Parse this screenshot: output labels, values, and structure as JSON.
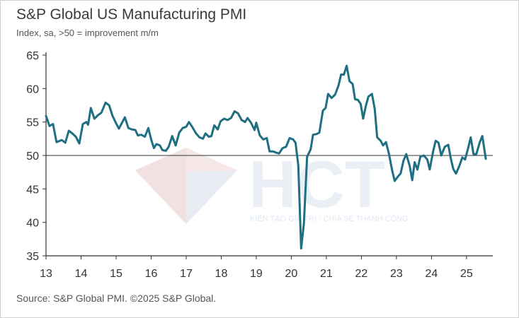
{
  "header": {
    "title": "S&P Global US Manufacturing PMI",
    "subtitle": "Index, sa, >50 = improvement m/m"
  },
  "footer": {
    "source": "Source: S&P Global PMI. ©2025 S&P Global."
  },
  "watermark": {
    "logo_text": "HCT",
    "tagline": "KIẾN TẠO GIÁ TRỊ - CHIA SẺ THÀNH CÔNG"
  },
  "colors": {
    "line": "#1f6f83",
    "axis": "#333333",
    "reference": "#333333"
  },
  "chart_data": {
    "type": "line",
    "title": "S&P Global US Manufacturing PMI",
    "subtitle": "Index, sa, >50 = improvement m/m",
    "xlabel": "",
    "ylabel": "",
    "ylim": [
      35,
      65
    ],
    "yticks": [
      35,
      40,
      45,
      50,
      55,
      60,
      65
    ],
    "xlim": [
      2013.0,
      2025.75
    ],
    "xtick_labels": [
      "13",
      "14",
      "15",
      "16",
      "17",
      "18",
      "19",
      "20",
      "21",
      "22",
      "23",
      "24",
      "25"
    ],
    "reference_line": 50,
    "grid": false,
    "legend": "none",
    "series": [
      {
        "values": [
          [
            2013.0,
            55.9
          ],
          [
            2013.1,
            54.4
          ],
          [
            2013.2,
            54.7
          ],
          [
            2013.3,
            52.0
          ],
          [
            2013.45,
            52.3
          ],
          [
            2013.55,
            51.9
          ],
          [
            2013.65,
            53.7
          ],
          [
            2013.75,
            53.3
          ],
          [
            2013.85,
            52.8
          ],
          [
            2013.95,
            51.8
          ],
          [
            2014.05,
            54.7
          ],
          [
            2014.15,
            55.0
          ],
          [
            2014.2,
            54.6
          ],
          [
            2014.28,
            57.1
          ],
          [
            2014.38,
            55.5
          ],
          [
            2014.48,
            56.0
          ],
          [
            2014.58,
            56.4
          ],
          [
            2014.7,
            57.9
          ],
          [
            2014.8,
            57.5
          ],
          [
            2014.9,
            55.9
          ],
          [
            2015.0,
            54.8
          ],
          [
            2015.08,
            54.0
          ],
          [
            2015.15,
            54.7
          ],
          [
            2015.25,
            55.7
          ],
          [
            2015.35,
            54.1
          ],
          [
            2015.45,
            53.9
          ],
          [
            2015.55,
            53.8
          ],
          [
            2015.62,
            53.0
          ],
          [
            2015.72,
            53.1
          ],
          [
            2015.82,
            52.8
          ],
          [
            2015.92,
            54.1
          ],
          [
            2016.0,
            52.4
          ],
          [
            2016.08,
            51.1
          ],
          [
            2016.15,
            51.7
          ],
          [
            2016.25,
            51.5
          ],
          [
            2016.32,
            50.8
          ],
          [
            2016.42,
            50.7
          ],
          [
            2016.5,
            51.3
          ],
          [
            2016.6,
            52.9
          ],
          [
            2016.7,
            51.5
          ],
          [
            2016.8,
            53.4
          ],
          [
            2016.9,
            54.1
          ],
          [
            2017.0,
            54.3
          ],
          [
            2017.08,
            55.0
          ],
          [
            2017.18,
            54.2
          ],
          [
            2017.28,
            53.3
          ],
          [
            2017.38,
            52.7
          ],
          [
            2017.48,
            52.5
          ],
          [
            2017.55,
            53.3
          ],
          [
            2017.65,
            52.8
          ],
          [
            2017.72,
            52.9
          ],
          [
            2017.8,
            54.5
          ],
          [
            2017.9,
            53.9
          ],
          [
            2017.98,
            55.1
          ],
          [
            2018.08,
            55.5
          ],
          [
            2018.18,
            55.3
          ],
          [
            2018.28,
            55.6
          ],
          [
            2018.38,
            56.6
          ],
          [
            2018.48,
            56.3
          ],
          [
            2018.58,
            55.3
          ],
          [
            2018.68,
            55.0
          ],
          [
            2018.75,
            55.6
          ],
          [
            2018.85,
            54.9
          ],
          [
            2018.95,
            53.8
          ],
          [
            2019.0,
            54.9
          ],
          [
            2019.1,
            53.0
          ],
          [
            2019.2,
            52.4
          ],
          [
            2019.3,
            52.6
          ],
          [
            2019.38,
            50.6
          ],
          [
            2019.48,
            50.6
          ],
          [
            2019.58,
            50.4
          ],
          [
            2019.65,
            50.3
          ],
          [
            2019.75,
            51.1
          ],
          [
            2019.85,
            51.3
          ],
          [
            2019.95,
            52.6
          ],
          [
            2020.05,
            52.4
          ],
          [
            2020.12,
            51.9
          ],
          [
            2020.2,
            48.5
          ],
          [
            2020.28,
            36.1
          ],
          [
            2020.36,
            39.8
          ],
          [
            2020.45,
            49.8
          ],
          [
            2020.55,
            50.9
          ],
          [
            2020.62,
            53.1
          ],
          [
            2020.72,
            53.2
          ],
          [
            2020.8,
            53.4
          ],
          [
            2020.9,
            56.7
          ],
          [
            2020.98,
            57.1
          ],
          [
            2021.05,
            59.2
          ],
          [
            2021.15,
            58.6
          ],
          [
            2021.25,
            59.1
          ],
          [
            2021.35,
            60.5
          ],
          [
            2021.42,
            62.1
          ],
          [
            2021.5,
            62.1
          ],
          [
            2021.58,
            63.4
          ],
          [
            2021.66,
            61.1
          ],
          [
            2021.75,
            60.7
          ],
          [
            2021.82,
            58.4
          ],
          [
            2021.9,
            58.3
          ],
          [
            2021.98,
            57.7
          ],
          [
            2022.05,
            55.5
          ],
          [
            2022.12,
            57.3
          ],
          [
            2022.2,
            58.8
          ],
          [
            2022.3,
            59.2
          ],
          [
            2022.38,
            57.0
          ],
          [
            2022.45,
            52.7
          ],
          [
            2022.55,
            52.2
          ],
          [
            2022.62,
            51.5
          ],
          [
            2022.7,
            52.0
          ],
          [
            2022.78,
            50.4
          ],
          [
            2022.88,
            47.7
          ],
          [
            2022.95,
            46.2
          ],
          [
            2023.05,
            46.9
          ],
          [
            2023.12,
            47.3
          ],
          [
            2023.2,
            49.2
          ],
          [
            2023.28,
            50.2
          ],
          [
            2023.38,
            48.4
          ],
          [
            2023.45,
            46.3
          ],
          [
            2023.52,
            49.0
          ],
          [
            2023.6,
            47.9
          ],
          [
            2023.68,
            49.8
          ],
          [
            2023.78,
            50.0
          ],
          [
            2023.88,
            49.4
          ],
          [
            2023.95,
            47.9
          ],
          [
            2024.05,
            50.7
          ],
          [
            2024.12,
            52.2
          ],
          [
            2024.2,
            51.9
          ],
          [
            2024.28,
            50.0
          ],
          [
            2024.38,
            51.3
          ],
          [
            2024.48,
            51.6
          ],
          [
            2024.55,
            49.6
          ],
          [
            2024.62,
            48.0
          ],
          [
            2024.7,
            47.3
          ],
          [
            2024.8,
            48.5
          ],
          [
            2024.88,
            49.7
          ],
          [
            2024.96,
            49.4
          ],
          [
            2025.05,
            51.2
          ],
          [
            2025.12,
            52.7
          ],
          [
            2025.2,
            50.2
          ],
          [
            2025.28,
            50.2
          ],
          [
            2025.38,
            52.0
          ],
          [
            2025.45,
            52.9
          ],
          [
            2025.55,
            49.5
          ]
        ]
      }
    ]
  }
}
